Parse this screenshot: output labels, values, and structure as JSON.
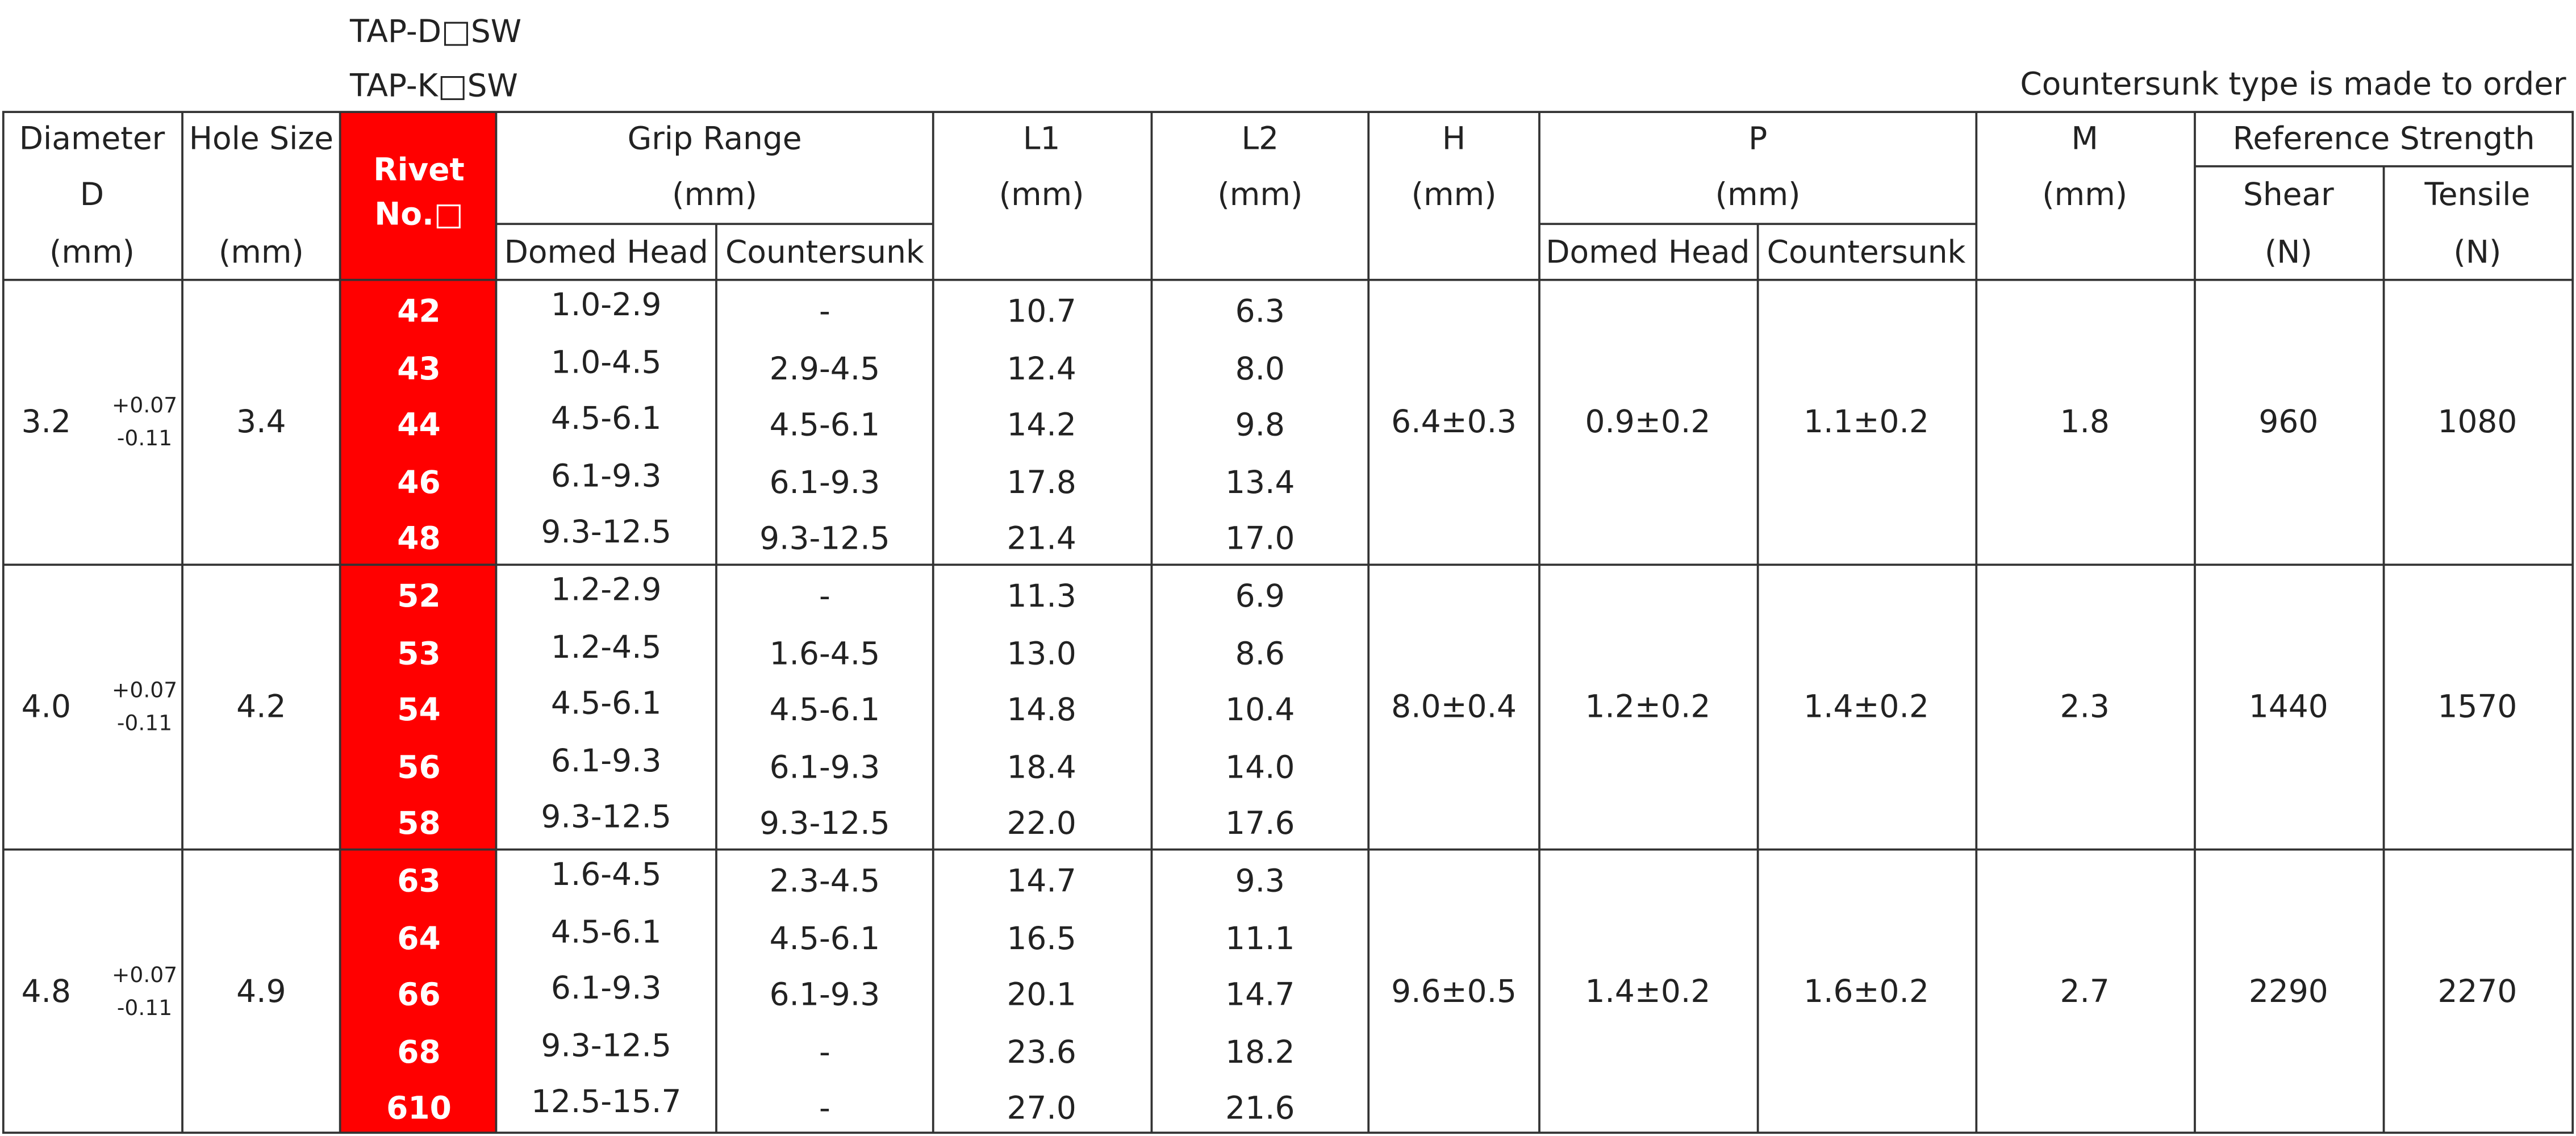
{
  "header": {
    "models": [
      "TAP-D□SW",
      "TAP-K□SW"
    ],
    "note": "Countersunk type is made to order"
  },
  "table": {
    "headers": {
      "diameter": [
        "Diameter",
        "D",
        "(mm)"
      ],
      "hole_size": [
        "Hole Size",
        "(mm)"
      ],
      "rivet_no": [
        "Rivet",
        "No.□"
      ],
      "grip_range": {
        "title": [
          "Grip Range",
          "(mm)"
        ],
        "sub": [
          "Domed Head",
          "Countersunk"
        ]
      },
      "l1": [
        "L1",
        "(mm)"
      ],
      "l2": [
        "L2",
        "(mm)"
      ],
      "h": [
        "H",
        "(mm)"
      ],
      "p": {
        "title": [
          "P",
          "(mm)"
        ],
        "sub": [
          "Domed Head",
          "Countersunk"
        ]
      },
      "m": [
        "M",
        "(mm)"
      ],
      "strength": {
        "title": "Reference Strength",
        "sub": [
          [
            "Shear",
            "(N)"
          ],
          [
            "Tensile",
            "(N)"
          ]
        ]
      }
    },
    "groups": [
      {
        "diameter": "3.2",
        "tolerance": [
          "+0.07",
          "-0.11"
        ],
        "hole_size": "3.4",
        "h": "6.4±0.3",
        "p_domed": "0.9±0.2",
        "p_countersunk": "1.1±0.2",
        "m": "1.8",
        "shear": "960",
        "tensile": "1080",
        "rows": [
          [
            "42",
            "1.0-2.9",
            "-",
            "10.7",
            "6.3"
          ],
          [
            "43",
            "1.0-4.5",
            "2.9-4.5",
            "12.4",
            "8.0"
          ],
          [
            "44",
            "4.5-6.1",
            "4.5-6.1",
            "14.2",
            "9.8"
          ],
          [
            "46",
            "6.1-9.3",
            "6.1-9.3",
            "17.8",
            "13.4"
          ],
          [
            "48",
            "9.3-12.5",
            "9.3-12.5",
            "21.4",
            "17.0"
          ]
        ]
      },
      {
        "diameter": "4.0",
        "tolerance": [
          "+0.07",
          "-0.11"
        ],
        "hole_size": "4.2",
        "h": "8.0±0.4",
        "p_domed": "1.2±0.2",
        "p_countersunk": "1.4±0.2",
        "m": "2.3",
        "shear": "1440",
        "tensile": "1570",
        "rows": [
          [
            "52",
            "1.2-2.9",
            "-",
            "11.3",
            "6.9"
          ],
          [
            "53",
            "1.2-4.5",
            "1.6-4.5",
            "13.0",
            "8.6"
          ],
          [
            "54",
            "4.5-6.1",
            "4.5-6.1",
            "14.8",
            "10.4"
          ],
          [
            "56",
            "6.1-9.3",
            "6.1-9.3",
            "18.4",
            "14.0"
          ],
          [
            "58",
            "9.3-12.5",
            "9.3-12.5",
            "22.0",
            "17.6"
          ]
        ]
      },
      {
        "diameter": "4.8",
        "tolerance": [
          "+0.07",
          "-0.11"
        ],
        "hole_size": "4.9",
        "h": "9.6±0.5",
        "p_domed": "1.4±0.2",
        "p_countersunk": "1.6±0.2",
        "m": "2.7",
        "shear": "2290",
        "tensile": "2270",
        "rows": [
          [
            "63",
            "1.6-4.5",
            "2.3-4.5",
            "14.7",
            "9.3"
          ],
          [
            "64",
            "4.5-6.1",
            "4.5-6.1",
            "16.5",
            "11.1"
          ],
          [
            "66",
            "6.1-9.3",
            "6.1-9.3",
            "20.1",
            "14.7"
          ],
          [
            "68",
            "9.3-12.5",
            "-",
            "23.6",
            "18.2"
          ],
          [
            "610",
            "12.5-15.7",
            "-",
            "27.0",
            "21.6"
          ]
        ]
      }
    ]
  }
}
